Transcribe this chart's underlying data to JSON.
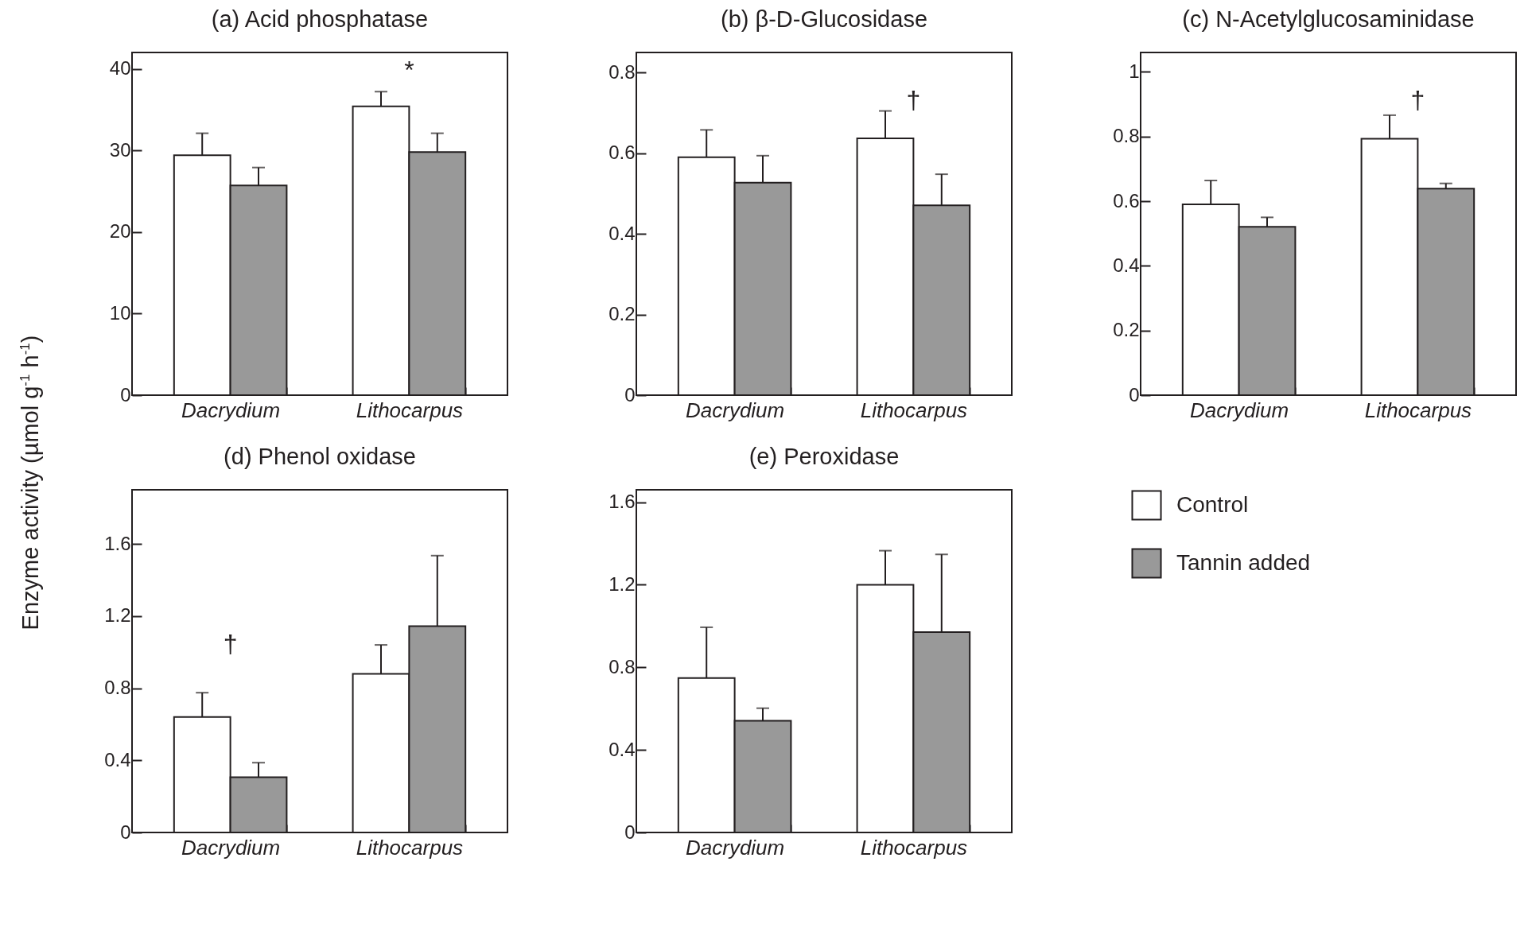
{
  "chart_data": [
    {
      "type": "bar",
      "title": "(a) Acid phosphatase",
      "ylabel": "Enzyme activity (µmol g$^{-1}$ h$^{-1}$)",
      "categories": [
        "Dacrydium",
        "Lithocarpus"
      ],
      "series": [
        {
          "color": "#ffffff",
          "values": [
            29.4,
            35.4
          ],
          "errors": [
            [
              29.4,
              32.1
            ],
            [
              35.4,
              37.2
            ]
          ]
        },
        {
          "color": "#999999",
          "values": [
            25.7,
            29.8
          ],
          "errors": [
            [
              25.7,
              27.9
            ],
            [
              29.8,
              32.1
            ]
          ]
        }
      ],
      "ylim": [
        0,
        42
      ],
      "yticks": [
        0,
        10,
        20,
        30,
        40
      ],
      "annotations": [
        "*"
      ]
    },
    {
      "type": "bar",
      "title": "(b) β-D-Glucosidase",
      "categories": [
        "Dacrydium",
        "Lithocarpus"
      ],
      "series": [
        {
          "color": "#ffffff",
          "values": [
            0.59,
            0.637
          ],
          "errors": [
            [
              0.59,
              0.658
            ],
            [
              0.637,
              0.705
            ]
          ]
        },
        {
          "color": "#999999",
          "values": [
            0.527,
            0.471
          ],
          "errors": [
            [
              0.527,
              0.594
            ],
            [
              0.471,
              0.548
            ]
          ]
        }
      ],
      "ylim": [
        0,
        0.85
      ],
      "yticks": [
        0,
        0.2,
        0.4,
        0.6,
        0.8
      ],
      "annotations": [
        "†"
      ]
    },
    {
      "type": "bar",
      "title": "(c) N-Acetylglucosaminidase",
      "categories": [
        "Dacrydium",
        "Lithocarpus"
      ],
      "series": [
        {
          "color": "#ffffff",
          "values": [
            0.59,
            0.793
          ],
          "errors": [
            [
              0.59,
              0.664
            ],
            [
              0.793,
              0.866
            ]
          ]
        },
        {
          "color": "#999999",
          "values": [
            0.521,
            0.639
          ],
          "errors": [
            [
              0.521,
              0.55
            ],
            [
              0.639,
              0.655
            ]
          ]
        }
      ],
      "ylim": [
        0,
        1.06
      ],
      "yticks": [
        0,
        0.2,
        0.4,
        0.6,
        0.8,
        1
      ],
      "annotations": [
        "†"
      ]
    },
    {
      "type": "bar",
      "title": "(d) Phenol oxidase",
      "categories": [
        "Dacrydium",
        "Lithocarpus"
      ],
      "series": [
        {
          "color": "#ffffff",
          "values": [
            0.64,
            0.88
          ],
          "errors": [
            [
              0.64,
              0.775
            ],
            [
              0.88,
              1.04
            ]
          ]
        },
        {
          "color": "#999999",
          "values": [
            0.306,
            1.144
          ],
          "errors": [
            [
              0.306,
              0.387
            ],
            [
              1.144,
              1.535
            ]
          ]
        }
      ],
      "ylim": [
        0,
        1.9
      ],
      "yticks": [
        0,
        0.4,
        0.8,
        1.2,
        1.6
      ],
      "annotations": [
        "†"
      ]
    },
    {
      "type": "bar",
      "title": "(e) Peroxidase",
      "categories": [
        "Dacrydium",
        "Lithocarpus"
      ],
      "series": [
        {
          "name": "Control",
          "color": "#ffffff",
          "values": [
            0.748,
            1.2
          ],
          "errors": [
            [
              0.748,
              0.994
            ],
            [
              1.2,
              1.365
            ]
          ]
        },
        {
          "name": "Tannin added",
          "color": "#999999",
          "values": [
            0.541,
            0.971
          ],
          "errors": [
            [
              0.541,
              0.602
            ],
            [
              0.971,
              1.347
            ]
          ]
        }
      ],
      "ylim": [
        0,
        1.66
      ],
      "yticks": [
        0,
        0.4,
        0.8,
        1.2,
        1.6
      ],
      "legend": "right"
    }
  ]
}
